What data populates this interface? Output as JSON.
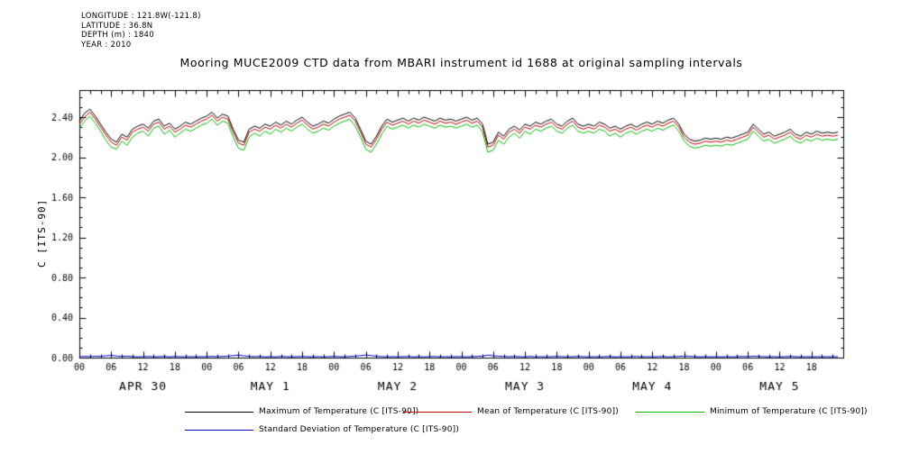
{
  "header": {
    "lines": [
      "LONGITUDE : 121.8W(-121.8)",
      "LATITUDE : 36.8N",
      "DEPTH (m) : 1840",
      "YEAR : 2010"
    ]
  },
  "title": "Mooring MUCE2009 CTD data from MBARI instrument id 1688 at original sampling intervals",
  "y_axis_label": "C [ITS-90]",
  "legend": [
    {
      "label": "Maximum of Temperature (C [ITS-90])",
      "color": "#000000"
    },
    {
      "label": "Mean of Temperature (C [ITS-90])",
      "color": "#bb0000"
    },
    {
      "label": "Minimum of Temperature (C [ITS-90])",
      "color": "#00bb00"
    },
    {
      "label": "Standard Deviation of Temperature (C [ITS-90])",
      "color": "#0000cc"
    }
  ],
  "chart_data": {
    "type": "line",
    "title": "Mooring MUCE2009 CTD data from MBARI instrument id 1688 at original sampling intervals",
    "ylabel": "C [ITS-90]",
    "xlabel": "",
    "grid": false,
    "legend_position": "bottom",
    "x_unit": "hours since 2010-04-30 00:00",
    "x_start": 0,
    "x_step": 1,
    "xlim": [
      0,
      144
    ],
    "ylim": [
      0,
      2.67
    ],
    "y_tick_values": [
      0.0,
      0.4,
      0.8,
      1.2,
      1.6,
      2.0,
      2.4
    ],
    "y_tick_labels": [
      "0.00",
      "0.40",
      "0.80",
      "1.20",
      "1.60",
      "2.00",
      "2.40"
    ],
    "x_major_tick_hours": 6,
    "x_minor_tick_hours": 2,
    "x_hour_labels": [
      "00",
      "06",
      "12",
      "18"
    ],
    "day_labels": [
      "APR 30",
      "MAY 1",
      "MAY 2",
      "MAY 3",
      "MAY 4",
      "MAY 5"
    ],
    "series": [
      {
        "name": "Maximum of Temperature (C [ITS-90])",
        "color": "#000000",
        "values": [
          2.36,
          2.44,
          2.48,
          2.41,
          2.33,
          2.25,
          2.18,
          2.15,
          2.23,
          2.2,
          2.28,
          2.31,
          2.33,
          2.29,
          2.36,
          2.38,
          2.31,
          2.34,
          2.28,
          2.31,
          2.35,
          2.33,
          2.36,
          2.39,
          2.41,
          2.45,
          2.39,
          2.43,
          2.41,
          2.28,
          2.17,
          2.15,
          2.28,
          2.31,
          2.29,
          2.33,
          2.31,
          2.35,
          2.32,
          2.36,
          2.33,
          2.37,
          2.4,
          2.35,
          2.31,
          2.33,
          2.36,
          2.34,
          2.38,
          2.41,
          2.43,
          2.45,
          2.39,
          2.28,
          2.16,
          2.13,
          2.21,
          2.31,
          2.38,
          2.35,
          2.37,
          2.39,
          2.36,
          2.39,
          2.37,
          2.4,
          2.38,
          2.36,
          2.39,
          2.37,
          2.38,
          2.36,
          2.38,
          2.4,
          2.37,
          2.39,
          2.33,
          2.13,
          2.15,
          2.25,
          2.21,
          2.28,
          2.31,
          2.27,
          2.33,
          2.31,
          2.35,
          2.33,
          2.36,
          2.38,
          2.33,
          2.31,
          2.36,
          2.39,
          2.33,
          2.31,
          2.33,
          2.31,
          2.35,
          2.33,
          2.29,
          2.31,
          2.28,
          2.31,
          2.33,
          2.3,
          2.33,
          2.35,
          2.33,
          2.36,
          2.34,
          2.37,
          2.39,
          2.33,
          2.23,
          2.18,
          2.16,
          2.17,
          2.19,
          2.18,
          2.19,
          2.18,
          2.2,
          2.19,
          2.21,
          2.23,
          2.25,
          2.33,
          2.28,
          2.23,
          2.25,
          2.21,
          2.23,
          2.25,
          2.28,
          2.23,
          2.21,
          2.25,
          2.23,
          2.26,
          2.24,
          2.25,
          2.24,
          2.25
        ]
      },
      {
        "name": "Mean of Temperature (C [ITS-90])",
        "color": "#bb0000",
        "values": [
          2.33,
          2.4,
          2.45,
          2.38,
          2.3,
          2.22,
          2.15,
          2.12,
          2.2,
          2.17,
          2.25,
          2.28,
          2.3,
          2.26,
          2.33,
          2.35,
          2.28,
          2.31,
          2.25,
          2.28,
          2.32,
          2.3,
          2.33,
          2.36,
          2.38,
          2.42,
          2.36,
          2.4,
          2.38,
          2.25,
          2.14,
          2.12,
          2.25,
          2.28,
          2.26,
          2.3,
          2.28,
          2.32,
          2.29,
          2.33,
          2.3,
          2.34,
          2.37,
          2.32,
          2.28,
          2.3,
          2.33,
          2.31,
          2.35,
          2.38,
          2.4,
          2.42,
          2.36,
          2.25,
          2.13,
          2.1,
          2.18,
          2.28,
          2.35,
          2.32,
          2.34,
          2.36,
          2.33,
          2.36,
          2.34,
          2.37,
          2.35,
          2.33,
          2.36,
          2.34,
          2.35,
          2.33,
          2.35,
          2.37,
          2.34,
          2.36,
          2.3,
          2.1,
          2.12,
          2.22,
          2.18,
          2.25,
          2.28,
          2.24,
          2.3,
          2.28,
          2.32,
          2.3,
          2.33,
          2.35,
          2.3,
          2.28,
          2.33,
          2.36,
          2.3,
          2.28,
          2.3,
          2.28,
          2.32,
          2.3,
          2.26,
          2.28,
          2.25,
          2.28,
          2.3,
          2.27,
          2.3,
          2.32,
          2.3,
          2.33,
          2.31,
          2.34,
          2.36,
          2.3,
          2.2,
          2.15,
          2.13,
          2.14,
          2.16,
          2.15,
          2.16,
          2.15,
          2.17,
          2.16,
          2.18,
          2.2,
          2.22,
          2.3,
          2.25,
          2.2,
          2.22,
          2.18,
          2.2,
          2.22,
          2.25,
          2.2,
          2.18,
          2.22,
          2.2,
          2.23,
          2.21,
          2.22,
          2.21,
          2.22
        ]
      },
      {
        "name": "Minimum of Temperature (C [ITS-90])",
        "color": "#00bb00",
        "values": [
          2.29,
          2.36,
          2.41,
          2.34,
          2.26,
          2.17,
          2.1,
          2.08,
          2.16,
          2.12,
          2.2,
          2.24,
          2.26,
          2.21,
          2.29,
          2.31,
          2.23,
          2.27,
          2.2,
          2.24,
          2.28,
          2.26,
          2.29,
          2.32,
          2.34,
          2.38,
          2.32,
          2.36,
          2.34,
          2.2,
          2.09,
          2.07,
          2.2,
          2.24,
          2.21,
          2.26,
          2.23,
          2.28,
          2.25,
          2.29,
          2.26,
          2.3,
          2.33,
          2.28,
          2.24,
          2.26,
          2.29,
          2.27,
          2.31,
          2.34,
          2.36,
          2.38,
          2.31,
          2.2,
          2.08,
          2.05,
          2.13,
          2.23,
          2.31,
          2.28,
          2.3,
          2.32,
          2.29,
          2.32,
          2.3,
          2.33,
          2.31,
          2.29,
          2.32,
          2.3,
          2.31,
          2.29,
          2.31,
          2.33,
          2.3,
          2.32,
          2.25,
          2.05,
          2.07,
          2.17,
          2.13,
          2.2,
          2.24,
          2.19,
          2.26,
          2.23,
          2.28,
          2.26,
          2.29,
          2.31,
          2.26,
          2.24,
          2.29,
          2.32,
          2.26,
          2.24,
          2.26,
          2.24,
          2.28,
          2.26,
          2.21,
          2.24,
          2.2,
          2.24,
          2.26,
          2.23,
          2.26,
          2.28,
          2.26,
          2.29,
          2.27,
          2.3,
          2.32,
          2.26,
          2.16,
          2.11,
          2.09,
          2.1,
          2.12,
          2.11,
          2.12,
          2.11,
          2.13,
          2.12,
          2.14,
          2.16,
          2.18,
          2.26,
          2.21,
          2.16,
          2.18,
          2.14,
          2.16,
          2.18,
          2.21,
          2.16,
          2.14,
          2.18,
          2.16,
          2.19,
          2.17,
          2.18,
          2.17,
          2.18
        ]
      },
      {
        "name": "Standard Deviation of Temperature (C [ITS-90])",
        "color": "#0000cc",
        "values": [
          0.01,
          0.012,
          0.01,
          0.014,
          0.012,
          0.018,
          0.022,
          0.016,
          0.012,
          0.015,
          0.01,
          0.008,
          0.01,
          0.012,
          0.008,
          0.01,
          0.012,
          0.008,
          0.012,
          0.01,
          0.008,
          0.01,
          0.008,
          0.01,
          0.01,
          0.012,
          0.01,
          0.012,
          0.015,
          0.02,
          0.024,
          0.018,
          0.012,
          0.01,
          0.012,
          0.008,
          0.01,
          0.008,
          0.012,
          0.01,
          0.008,
          0.01,
          0.012,
          0.01,
          0.008,
          0.01,
          0.008,
          0.01,
          0.012,
          0.01,
          0.008,
          0.012,
          0.015,
          0.02,
          0.026,
          0.02,
          0.014,
          0.01,
          0.008,
          0.01,
          0.008,
          0.01,
          0.012,
          0.008,
          0.01,
          0.008,
          0.01,
          0.012,
          0.008,
          0.01,
          0.008,
          0.01,
          0.01,
          0.008,
          0.01,
          0.012,
          0.015,
          0.025,
          0.018,
          0.014,
          0.012,
          0.01,
          0.012,
          0.01,
          0.008,
          0.012,
          0.008,
          0.01,
          0.008,
          0.01,
          0.012,
          0.01,
          0.008,
          0.01,
          0.012,
          0.01,
          0.008,
          0.01,
          0.008,
          0.01,
          0.012,
          0.008,
          0.01,
          0.008,
          0.01,
          0.012,
          0.008,
          0.01,
          0.008,
          0.01,
          0.012,
          0.008,
          0.01,
          0.012,
          0.016,
          0.014,
          0.01,
          0.008,
          0.01,
          0.008,
          0.01,
          0.008,
          0.01,
          0.008,
          0.01,
          0.012,
          0.01,
          0.014,
          0.012,
          0.01,
          0.008,
          0.01,
          0.008,
          0.01,
          0.012,
          0.01,
          0.008,
          0.01,
          0.008,
          0.01,
          0.008,
          0.01,
          0.008,
          0.01
        ]
      }
    ]
  }
}
